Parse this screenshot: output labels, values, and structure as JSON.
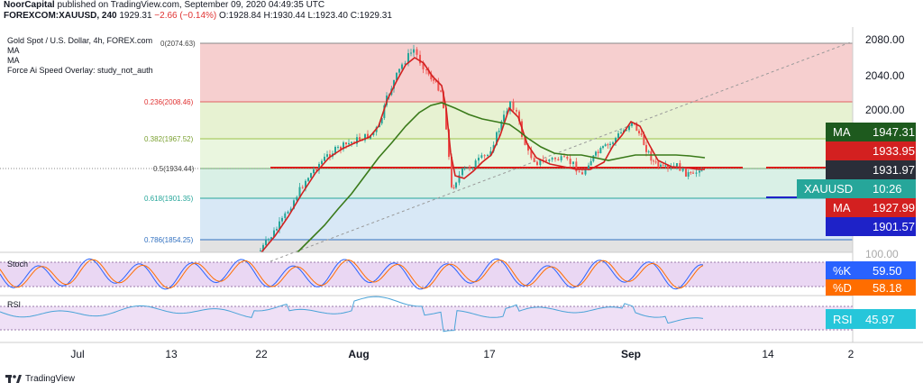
{
  "header": {
    "publisher": "NoorCapital",
    "published_text": "published on TradingView.com, September 09, 2020 04:49:35 UTC"
  },
  "symbol_line": {
    "symbol": "FOREXCOM:XAUUSD, 240",
    "last": "1929.31",
    "change": "−2.66 (−0.14%)",
    "open": "O:1928.84",
    "high": "H:1930.44",
    "low": "L:1923.40",
    "close": "C:1929.31"
  },
  "legend": {
    "title": "Gold Spot / U.S. Dollar, 4h, FOREX.com",
    "ma1": "MA",
    "ma2": "MA",
    "overlay": "Force Ai Speed Overlay: study_not_auth"
  },
  "fib_levels": [
    {
      "label": "0(2074.63)",
      "value": 2074.63
    },
    {
      "label": "0.236(2008.46)",
      "value": 2008.46
    },
    {
      "label": "0.382(1967.52)",
      "value": 1967.52
    },
    {
      "label": "0.5(1934.44)",
      "value": 1934.44
    },
    {
      "label": "0.618(1901.35)",
      "value": 1901.35
    },
    {
      "label": "0.786(1854.25)",
      "value": 1854.25
    }
  ],
  "price_axis": {
    "ticks": [
      "2080.00",
      "2040.00",
      "2000.00",
      "1931.97",
      "100.00"
    ],
    "tags": [
      {
        "name": "ma-tag-1",
        "label": "MA",
        "value": "1947.31",
        "color": "#1e5a1e"
      },
      {
        "name": "ma-red-tag",
        "label": "",
        "value": "1933.95",
        "color": "#d32020"
      },
      {
        "name": "last-price-tag",
        "label": "",
        "value": "1931.97",
        "color": "#2a2e39"
      },
      {
        "name": "symbol-tag",
        "label": "XAUUSD",
        "value": "10:26",
        "color": "#26a69a"
      },
      {
        "name": "ma-tag-2",
        "label": "MA",
        "value": "1927.99",
        "color": "#d32020"
      },
      {
        "name": "support-tag",
        "label": "",
        "value": "1901.57",
        "color": "#1e22c8"
      }
    ]
  },
  "stoch": {
    "title": "Stoch",
    "k_label": "%K",
    "k_value": "59.50",
    "d_label": "%D",
    "d_value": "58.18"
  },
  "rsi": {
    "title": "RSI",
    "label": "RSI",
    "value": "45.97"
  },
  "x_axis": [
    "Jul",
    "13",
    "22",
    "Aug",
    "17",
    "Sep",
    "14",
    "2"
  ],
  "footer": {
    "brand": "TradingView"
  },
  "colors": {
    "bull": "#26a69a",
    "bear": "#ef5350",
    "ma_fast": "#d32020",
    "ma_slow": "#3a7a1a"
  }
}
